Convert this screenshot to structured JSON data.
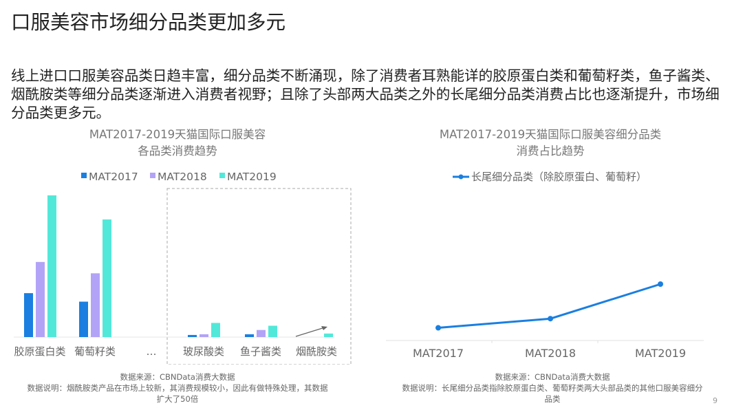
{
  "title": "口服美容市场细分品类更加多元",
  "paragraph": [
    "线上进口口服美容品类日趋丰富，细分品类不断涌现，除了消费者耳熟能详的胶原蛋白类和葡萄籽类，鱼子酱类、",
    "烟酰胺类等细分品类逐渐进入消费者视野；且除了头部两大品类之外的长尾细分品类消费占比也逐渐提升，市场细",
    "分品类更多元。"
  ],
  "chart_data": [
    {
      "type": "bar",
      "title": [
        "MAT2017-2019天猫国际口服美容",
        "各品类消费趋势"
      ],
      "categories": [
        "胶原蛋白类",
        "葡萄籽类",
        "…",
        "玻尿酸类",
        "鱼子酱类",
        "烟酰胺类"
      ],
      "series": [
        {
          "name": "MAT2017",
          "color": "#1a7fe0",
          "values": [
            31,
            25,
            null,
            1.5,
            2,
            0
          ]
        },
        {
          "name": "MAT2018",
          "color": "#b3a3f7",
          "values": [
            53,
            45,
            null,
            2,
            5,
            0
          ]
        },
        {
          "name": "MAT2019",
          "color": "#52e8d9",
          "values": [
            100,
            83,
            null,
            10,
            8,
            2.5
          ]
        }
      ],
      "ylim": [
        0,
        100
      ],
      "y_axis_shown": false,
      "grid": false,
      "legend": "top",
      "annotations": [
        "dashed box around 玻尿酸类, 鱼子酱类, 烟酰胺类",
        "upward arrow at 烟酰胺类"
      ],
      "source": "数据来源：CBNData消费大数据",
      "note": [
        "数据说明：烟酰胺类产品在市场上较新，其消费规模较小，因此有做特殊处理，其数据",
        "扩大了50倍"
      ]
    },
    {
      "type": "line",
      "title": [
        "MAT2017-2019天猫国际口服美容细分品类",
        "消费占比趋势"
      ],
      "categories": [
        "MAT2017",
        "MAT2018",
        "MAT2019"
      ],
      "series": [
        {
          "name": "长尾细分品类（除胶原蛋白、葡萄籽）",
          "color": "#1a7fe0",
          "values": [
            9,
            15.5,
            40
          ]
        }
      ],
      "ylim": [
        0,
        100
      ],
      "y_axis_shown": false,
      "grid": false,
      "legend": "top",
      "source": "数据来源：CBNData消费大数据",
      "note": [
        "数据说明：长尾细分品类指除胶原蛋白类、葡萄籽类两大头部品类的其他口服美容细分",
        "品类"
      ]
    }
  ],
  "page_number": "9"
}
